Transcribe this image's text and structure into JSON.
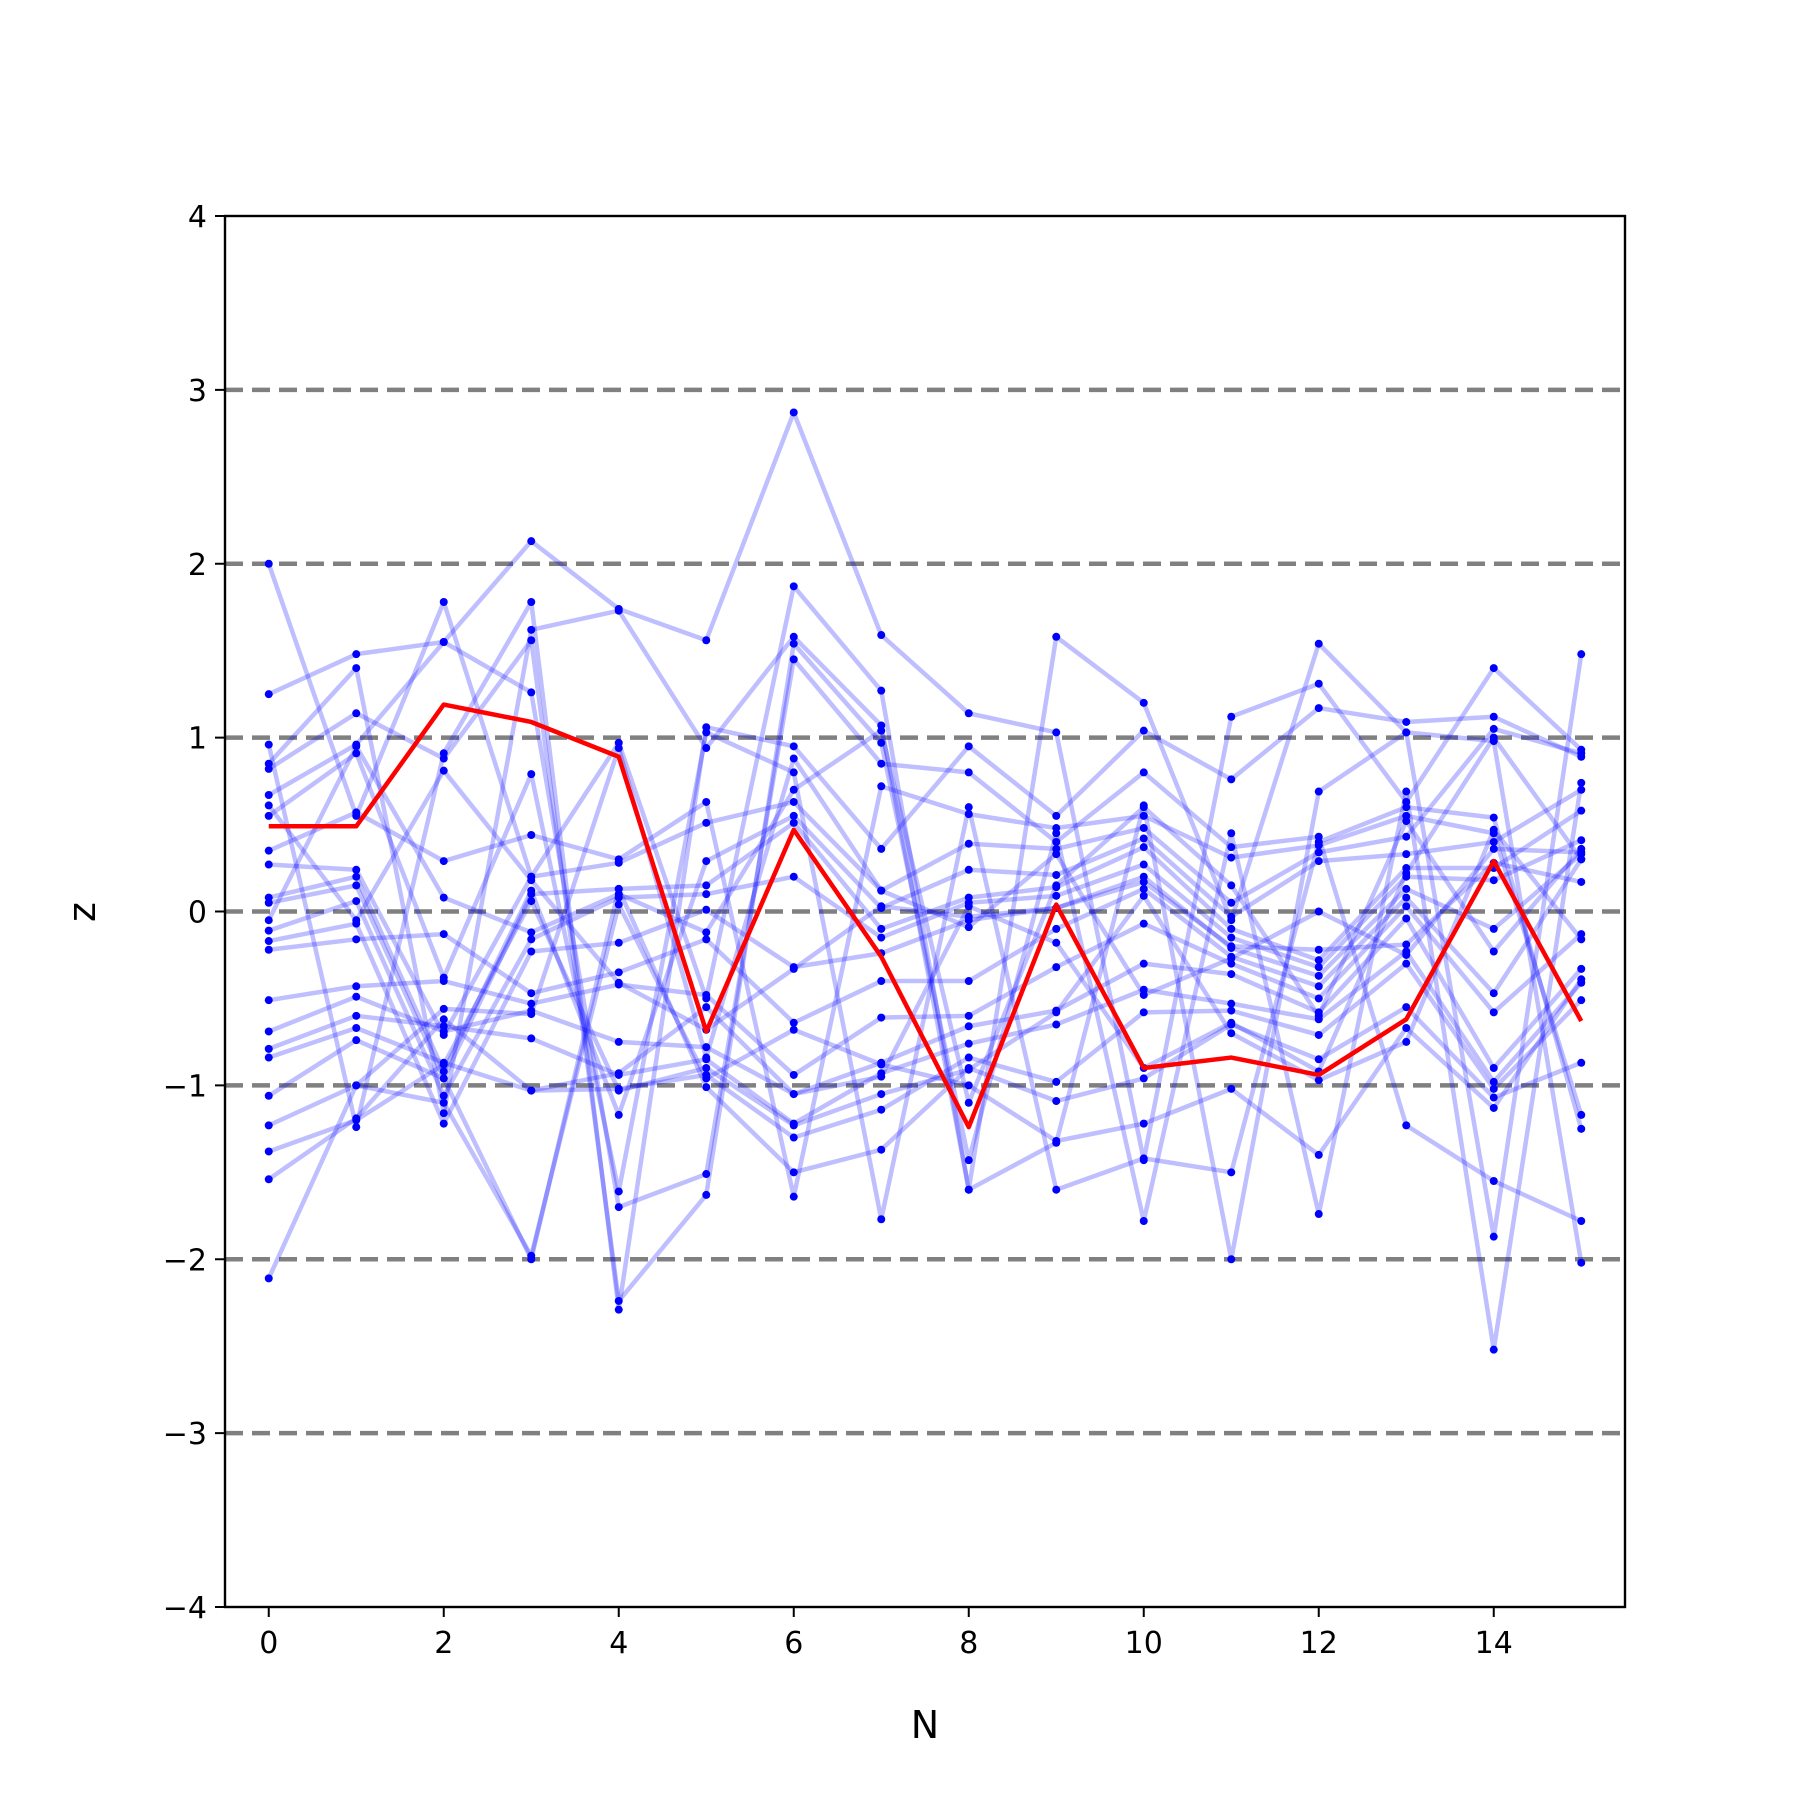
{
  "chart_data": {
    "type": "line",
    "title": "",
    "xlabel": "N",
    "ylabel": "z",
    "xlim": [
      -0.5,
      15.5
    ],
    "ylim": [
      -4,
      4
    ],
    "xticks": [
      0,
      2,
      4,
      6,
      8,
      10,
      12,
      14
    ],
    "yticks": [
      -4,
      -3,
      -2,
      -1,
      0,
      1,
      2,
      3,
      4
    ],
    "ytick_labels": [
      "−4",
      "−3",
      "−2",
      "−1",
      "0",
      "1",
      "2",
      "3",
      "4"
    ],
    "reference_lines": [
      -3,
      -2,
      -1,
      0,
      1,
      2,
      3
    ],
    "grid": false,
    "legend": "none",
    "colors": {
      "samples": "#0000ff",
      "highlight": "#ff0000",
      "reference": "#808080",
      "axes": "#000000"
    },
    "x": [
      0,
      1,
      2,
      3,
      4,
      5,
      6,
      7,
      8,
      9,
      10,
      11,
      12,
      13,
      14,
      15
    ],
    "highlight_series": {
      "values": [
        0.49,
        0.49,
        1.19,
        1.09,
        0.89,
        -0.69,
        0.47,
        -0.26,
        -1.24,
        0.04,
        -0.9,
        -0.84,
        -0.94,
        -0.62,
        0.29,
        -0.63
      ]
    },
    "series": [
      {
        "values": [
          2.0,
          0.55,
          1.78,
          0.2,
          0.97,
          -0.5,
          1.87,
          1.27,
          -1.6,
          1.58,
          1.2,
          -0.05,
          1.54,
          1.03,
          -1.87,
          1.48
        ]
      },
      {
        "values": [
          1.25,
          1.48,
          1.55,
          2.13,
          1.74,
          1.56,
          2.87,
          1.59,
          1.14,
          1.03,
          -1.43,
          1.12,
          1.31,
          0.63,
          1.4,
          0.93
        ]
      },
      {
        "values": [
          0.96,
          -1.24,
          0.91,
          1.78,
          -2.29,
          1.06,
          0.95,
          0.36,
          0.95,
          0.55,
          1.04,
          0.76,
          1.17,
          1.09,
          1.12,
          0.89
        ]
      },
      {
        "values": [
          0.85,
          1.4,
          -1.16,
          1.62,
          1.73,
          0.94,
          1.58,
          1.07,
          -1.6,
          -1.33,
          0.61,
          -2.0,
          0.69,
          1.03,
          0.98,
          -2.02
        ]
      },
      {
        "values": [
          0.82,
          1.14,
          0.88,
          1.56,
          -2.24,
          -1.63,
          1.54,
          0.97,
          -1.43,
          0.45,
          -1.78,
          0.45,
          -1.74,
          0.69,
          -2.52,
          0.74
        ]
      },
      {
        "values": [
          0.67,
          0.96,
          1.55,
          1.26,
          -1.7,
          -1.51,
          1.45,
          0.85,
          0.8,
          0.4,
          0.8,
          0.37,
          0.43,
          -1.23,
          -1.55,
          -1.78
        ]
      },
      {
        "values": [
          0.55,
          0.91,
          -0.38,
          0.79,
          -1.61,
          1.03,
          0.8,
          -1.77,
          0.6,
          -1.6,
          -1.42,
          -1.5,
          0.4,
          0.6,
          0.54,
          -1.25
        ]
      },
      {
        "values": [
          0.35,
          0.57,
          0.29,
          0.44,
          0.3,
          0.63,
          -1.64,
          0.72,
          0.56,
          0.48,
          0.55,
          0.31,
          0.38,
          0.55,
          0.45,
          -1.17
        ]
      },
      {
        "values": [
          0.27,
          0.24,
          -0.71,
          0.2,
          0.28,
          0.51,
          0.63,
          0.12,
          0.39,
          0.36,
          0.48,
          0.05,
          0.34,
          0.43,
          1.05,
          0.91
        ]
      },
      {
        "values": [
          0.08,
          0.2,
          -0.92,
          0.12,
          -1.17,
          0.29,
          0.55,
          0.02,
          0.24,
          0.21,
          0.42,
          -0.03,
          0.29,
          0.33,
          0.4,
          0.7
        ]
      },
      {
        "values": [
          0.05,
          0.15,
          -0.96,
          0.1,
          0.13,
          0.15,
          0.51,
          -0.1,
          0.08,
          0.14,
          0.37,
          -0.1,
          -0.28,
          0.25,
          0.25,
          0.58
        ]
      },
      {
        "values": [
          -0.11,
          0.06,
          -1.06,
          -0.16,
          0.08,
          0.1,
          0.2,
          -0.15,
          0.05,
          0.09,
          0.27,
          -0.15,
          -0.32,
          0.2,
          0.18,
          0.41
        ]
      },
      {
        "values": [
          -0.17,
          -0.07,
          -1.22,
          -0.23,
          -0.18,
          0.01,
          -0.32,
          -0.24,
          -0.05,
          0.02,
          0.2,
          -0.21,
          -0.37,
          0.13,
          -0.1,
          0.33
        ]
      },
      {
        "values": [
          -0.22,
          -0.16,
          -0.13,
          -0.47,
          -0.35,
          -0.16,
          -0.64,
          -0.4,
          -0.4,
          -0.1,
          0.13,
          -0.26,
          -0.43,
          0.08,
          -0.47,
          0.3
        ]
      },
      {
        "values": [
          -0.51,
          -0.43,
          -0.4,
          -0.53,
          -0.42,
          -0.48,
          -0.94,
          -0.61,
          -0.6,
          -0.32,
          -0.07,
          -0.3,
          -0.5,
          0.03,
          -0.58,
          -0.13
        ]
      },
      {
        "values": [
          -0.69,
          -0.49,
          -0.69,
          -0.57,
          -0.75,
          -0.78,
          -1.05,
          -0.87,
          -0.66,
          -0.57,
          -0.3,
          -0.36,
          -0.58,
          -0.04,
          -0.9,
          -0.33
        ]
      },
      {
        "values": [
          -0.79,
          -0.6,
          -0.66,
          -0.73,
          -0.94,
          -0.85,
          -1.22,
          -0.93,
          -0.76,
          -0.65,
          -0.45,
          -0.53,
          -0.62,
          -0.23,
          -0.98,
          -0.41
        ]
      },
      {
        "values": [
          -0.84,
          -0.67,
          -0.87,
          -1.03,
          -1.02,
          -0.94,
          -1.3,
          -1.14,
          -0.84,
          -0.98,
          -0.58,
          -0.57,
          -0.71,
          -0.3,
          -1.02,
          -0.51
        ]
      },
      {
        "values": [
          -1.06,
          -0.74,
          -0.96,
          -2.0,
          0.13,
          -1.01,
          -1.5,
          -1.37,
          -0.9,
          -1.09,
          -0.96,
          -0.65,
          -0.85,
          -0.55,
          -1.07,
          -0.87
        ]
      },
      {
        "values": [
          -1.23,
          -1.0,
          -1.1,
          -1.98,
          0.04,
          -0.96,
          -0.68,
          -0.88,
          -1.0,
          -1.32,
          -1.22,
          -1.02,
          -1.4,
          -0.67,
          -1.13,
          -0.39
        ]
      },
      {
        "values": [
          -1.38,
          -1.2,
          -0.88,
          0.06,
          -1.03,
          -0.9,
          -1.23,
          -1.05,
          -0.91,
          -0.58,
          0.09,
          -0.7,
          -0.97,
          -0.75,
          0.47,
          -0.16
        ]
      },
      {
        "values": [
          -1.54,
          -1.19,
          -0.62,
          -1.03,
          -0.93,
          -0.55,
          -1.05,
          -0.95,
          0.03,
          -0.18,
          -0.9,
          -0.64,
          -0.92,
          0.22,
          1.0,
          0.3
        ]
      },
      {
        "values": [
          -2.11,
          -1.0,
          -0.56,
          -0.59,
          0.94,
          -0.84,
          0.88,
          0.12,
          -0.09,
          0.33,
          -0.48,
          -0.27,
          0.0,
          -0.25,
          0.36,
          0.34
        ]
      },
      {
        "values": [
          0.61,
          -0.05,
          0.81,
          0.18,
          -0.41,
          -0.68,
          -0.33,
          0.03,
          -0.03,
          0.02,
          0.17,
          -0.2,
          -0.22,
          -0.19,
          0.28,
          0.17
        ]
      },
      {
        "values": [
          -0.05,
          0.95,
          0.08,
          -0.12,
          0.1,
          -0.12,
          0.7,
          1.04,
          -1.1,
          0.15,
          0.6,
          0.15,
          -0.6,
          0.52,
          -0.23,
          0.36
        ]
      }
    ]
  }
}
